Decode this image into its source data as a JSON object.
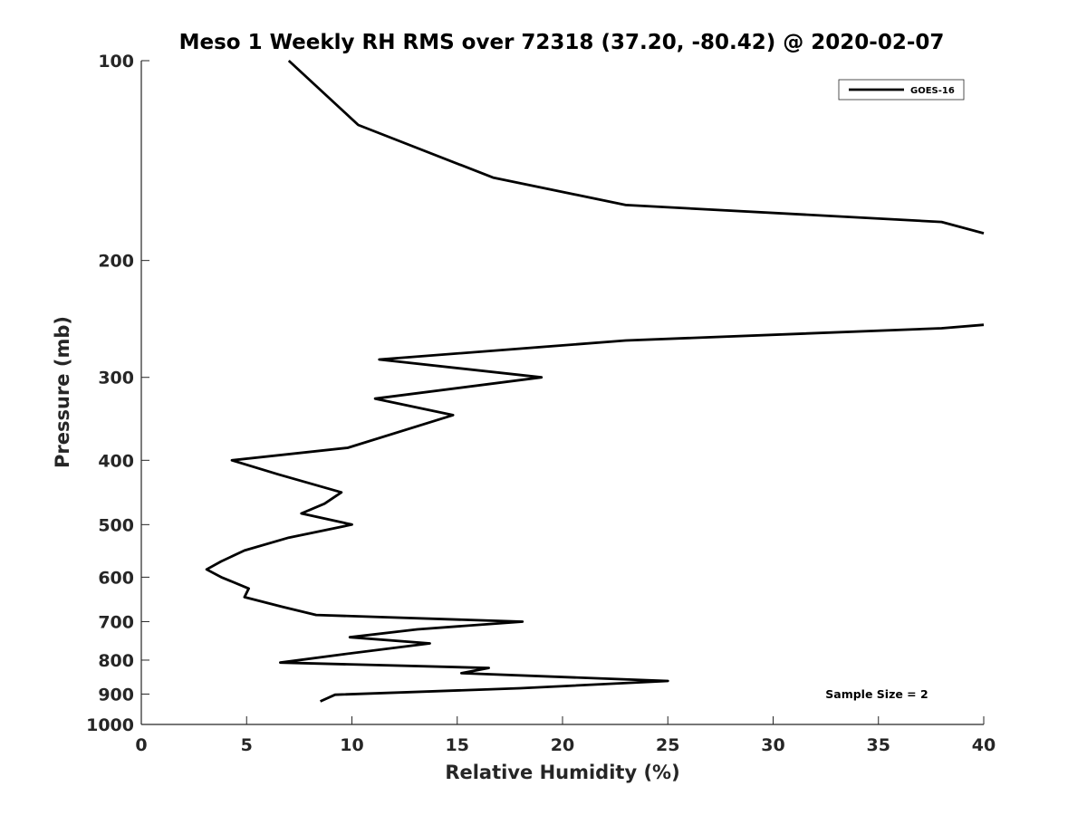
{
  "chart_data": {
    "type": "line",
    "title": "Meso 1 Weekly RH RMS over 72318 (37.20, -80.42) @ 2020-02-07",
    "xlabel": "Relative Humidity (%)",
    "ylabel": "Pressure (mb)",
    "xlim": [
      0,
      40
    ],
    "ylim": [
      100,
      1000
    ],
    "y_scale": "log",
    "y_reversed": true,
    "x_ticks": [
      0,
      5,
      10,
      15,
      20,
      25,
      30,
      35,
      40
    ],
    "y_ticks": [
      100,
      200,
      300,
      400,
      500,
      600,
      700,
      800,
      900,
      1000
    ],
    "grid": false,
    "legend_position": "top-right",
    "annotation": "Sample Size = 2",
    "series": [
      {
        "name": "GOES-16",
        "color": "#000000",
        "segments": [
          [
            {
              "x": 7.0,
              "y": 100
            },
            {
              "x": 10.3,
              "y": 125
            },
            {
              "x": 16.7,
              "y": 150
            },
            {
              "x": 23.0,
              "y": 165
            },
            {
              "x": 38.0,
              "y": 175
            },
            {
              "x": 40.0,
              "y": 182
            }
          ],
          [
            {
              "x": 40.0,
              "y": 250
            },
            {
              "x": 38.0,
              "y": 253
            },
            {
              "x": 23.0,
              "y": 264
            },
            {
              "x": 11.3,
              "y": 282
            },
            {
              "x": 19.0,
              "y": 300
            },
            {
              "x": 11.1,
              "y": 323
            },
            {
              "x": 14.8,
              "y": 342
            },
            {
              "x": 9.8,
              "y": 383
            },
            {
              "x": 4.3,
              "y": 400
            },
            {
              "x": 6.5,
              "y": 420
            },
            {
              "x": 9.5,
              "y": 447
            },
            {
              "x": 8.7,
              "y": 465
            },
            {
              "x": 7.6,
              "y": 481
            },
            {
              "x": 10.0,
              "y": 500
            },
            {
              "x": 7.0,
              "y": 523
            },
            {
              "x": 4.9,
              "y": 547
            },
            {
              "x": 3.8,
              "y": 568
            },
            {
              "x": 3.1,
              "y": 584
            },
            {
              "x": 3.8,
              "y": 600
            },
            {
              "x": 5.1,
              "y": 624
            },
            {
              "x": 4.9,
              "y": 643
            },
            {
              "x": 6.7,
              "y": 665
            },
            {
              "x": 8.3,
              "y": 684
            },
            {
              "x": 18.1,
              "y": 700
            },
            {
              "x": 13.1,
              "y": 719
            },
            {
              "x": 9.9,
              "y": 739
            },
            {
              "x": 13.7,
              "y": 755
            },
            {
              "x": 9.6,
              "y": 784
            },
            {
              "x": 6.6,
              "y": 807
            },
            {
              "x": 16.5,
              "y": 822
            },
            {
              "x": 15.2,
              "y": 837
            },
            {
              "x": 25.0,
              "y": 860
            },
            {
              "x": 18.0,
              "y": 882
            },
            {
              "x": 9.2,
              "y": 902
            },
            {
              "x": 8.5,
              "y": 923
            }
          ]
        ]
      }
    ]
  }
}
